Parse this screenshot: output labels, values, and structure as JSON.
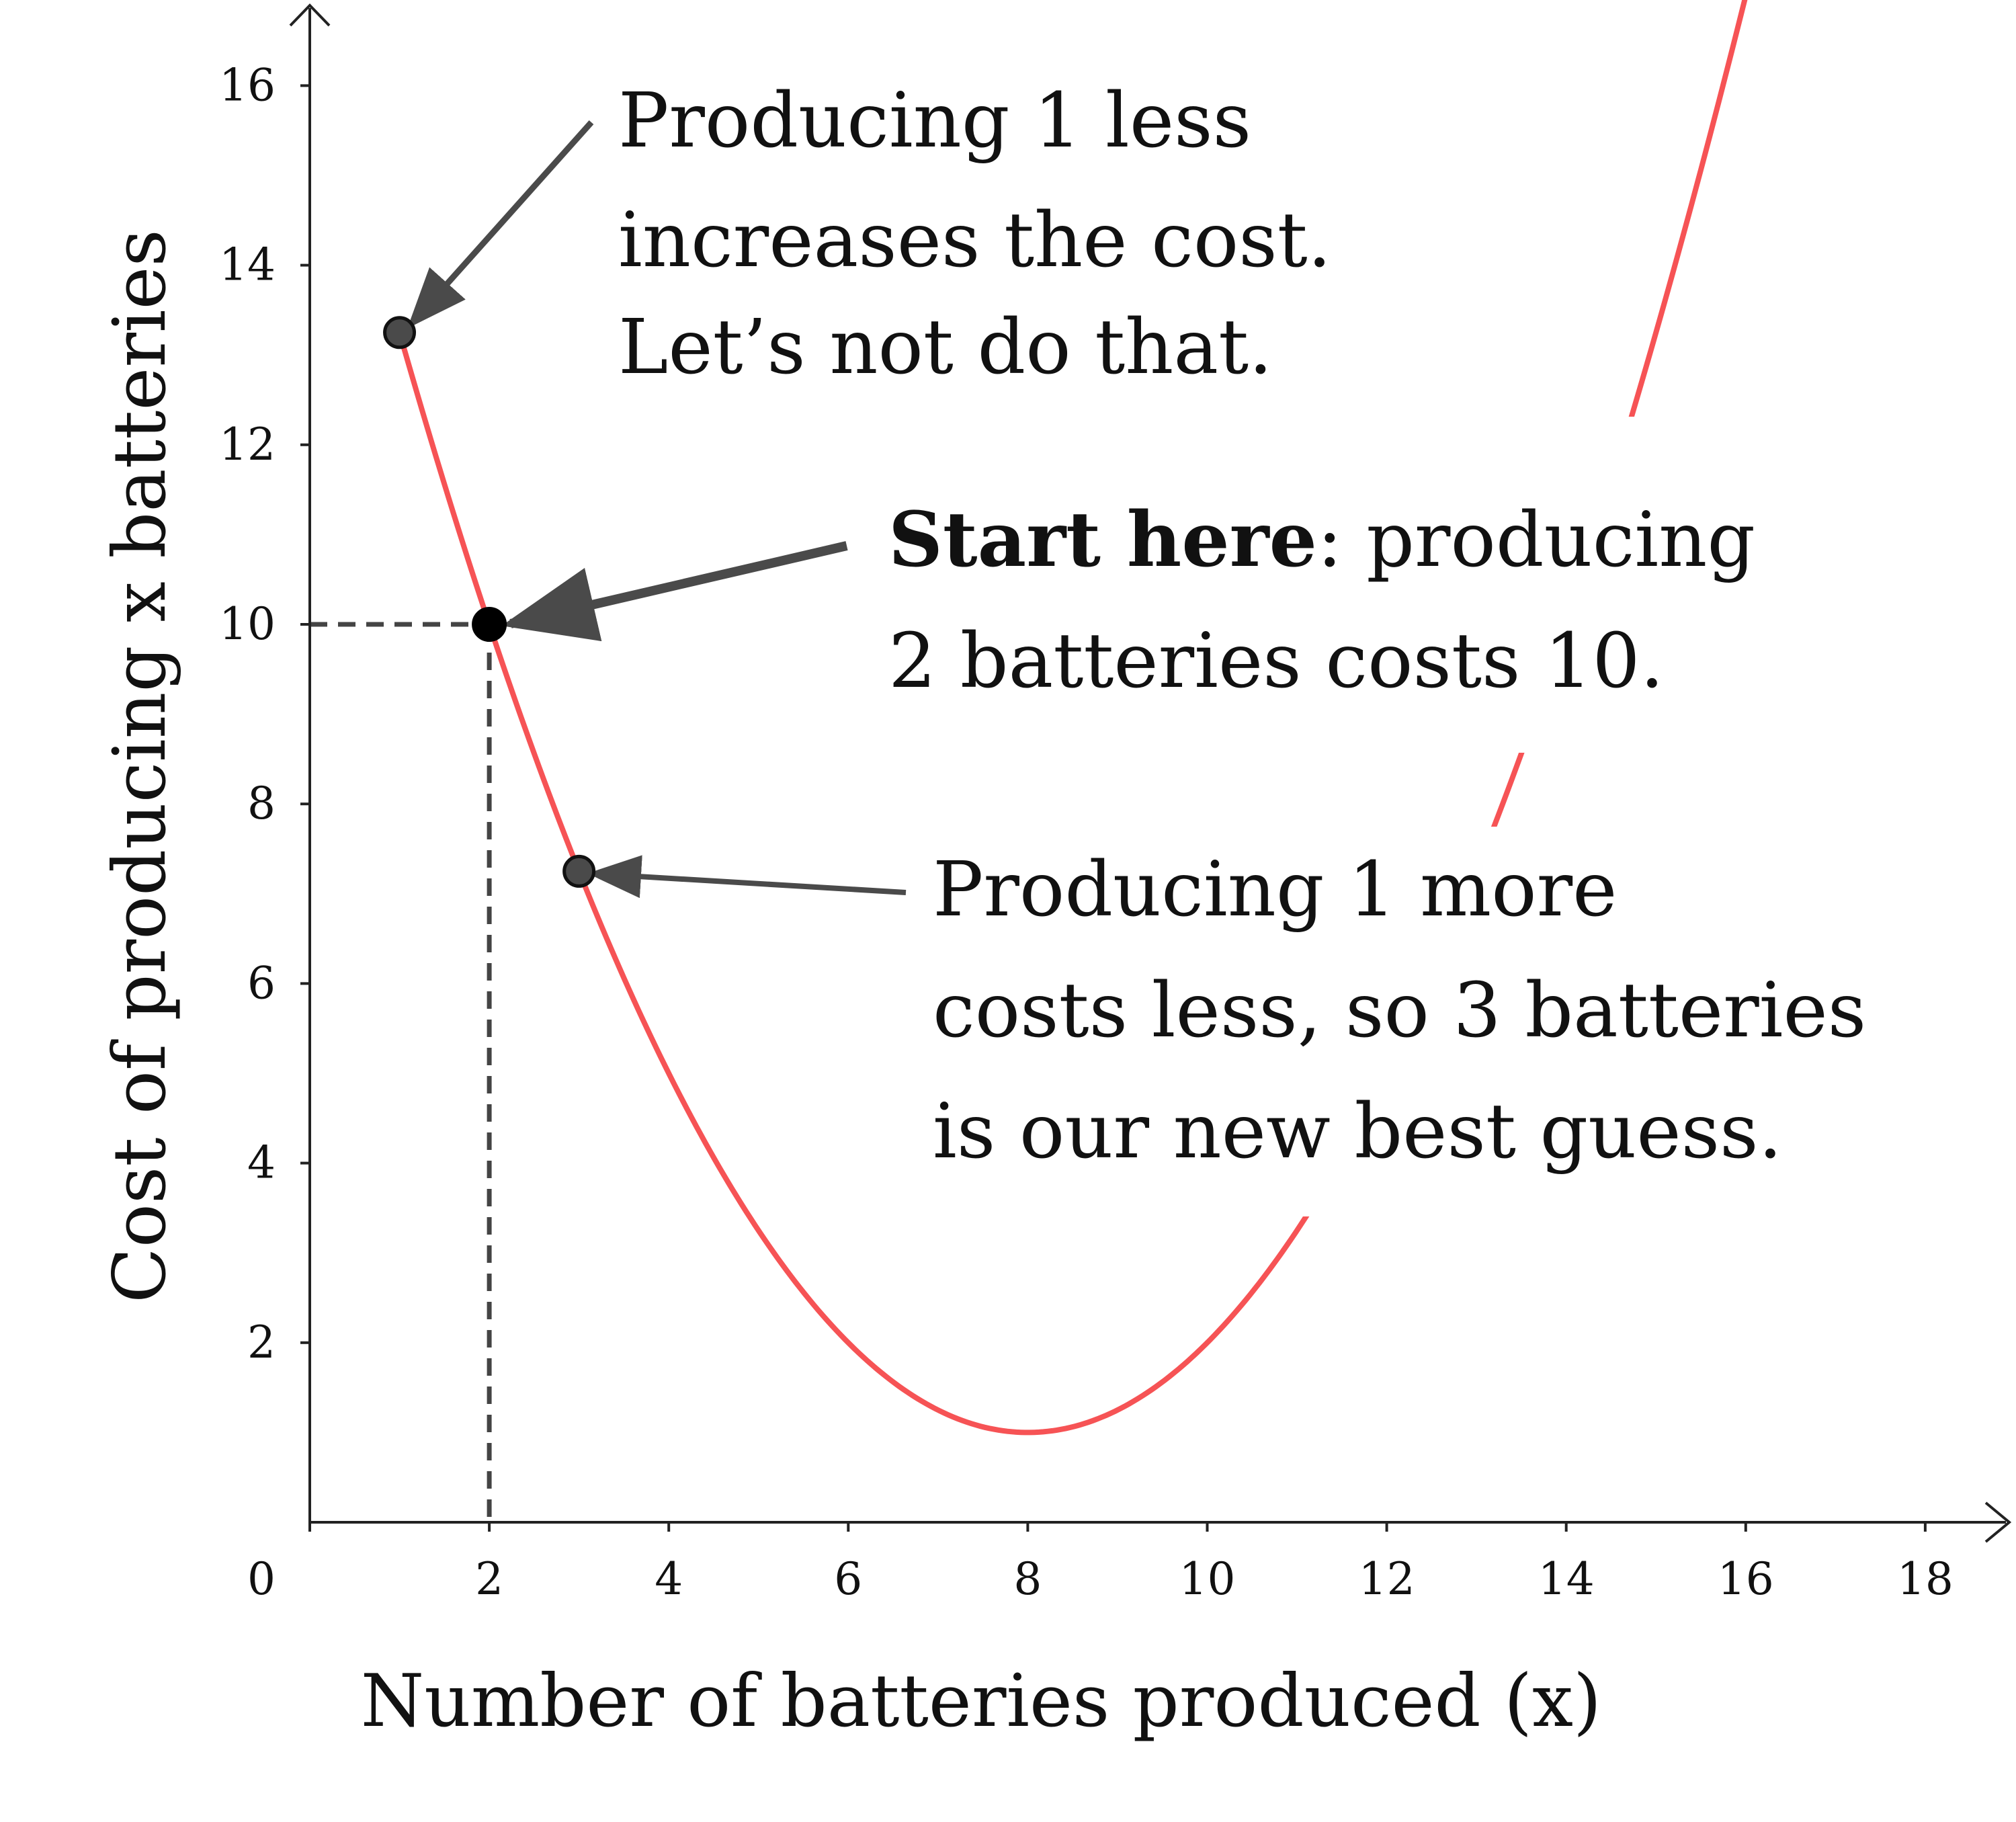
{
  "chart_data": {
    "type": "line",
    "title": "",
    "xlabel": "Number of batteries produced (x)",
    "ylabel": "Cost of producing x batteries",
    "xlim": [
      0,
      18
    ],
    "ylim": [
      0,
      16.5
    ],
    "x_ticks": [
      0,
      2,
      4,
      6,
      8,
      10,
      12,
      14,
      16,
      18
    ],
    "y_ticks": [
      2,
      4,
      6,
      8,
      10,
      12,
      14,
      16
    ],
    "grid": false,
    "series": [
      {
        "name": "cost",
        "color": "#f65355",
        "function": "0.25*(x-8)^2+1",
        "x_start": 1,
        "x_end": 16.05
      }
    ],
    "points": [
      {
        "name": "current",
        "x": 2,
        "y": 10,
        "color": "#000000"
      },
      {
        "name": "one-less",
        "x": 1,
        "y": 13.25,
        "color": "#4a4a4a"
      },
      {
        "name": "one-more",
        "x": 3,
        "y": 7.25,
        "color": "#4a4a4a"
      }
    ],
    "annotations": {
      "one_less": [
        "Producing 1 less",
        "increases the cost.",
        "Let’s not do that."
      ],
      "start_bold": "Start here",
      "start_rest": ": producing",
      "start_line2": "2 batteries costs 10.",
      "one_more": [
        "Producing 1 more",
        "costs less, so 3 batteries",
        "is our new best guess."
      ]
    },
    "colors": {
      "curve": "#f65355",
      "axis": "#222222",
      "arrow": "#4a4a4a",
      "dashed": "#444444"
    }
  }
}
